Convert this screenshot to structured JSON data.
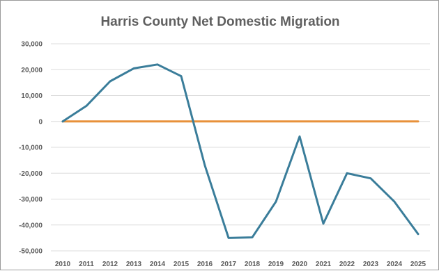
{
  "chart_data": {
    "type": "line",
    "title": "Harris County Net Domestic Migration",
    "xlabel": "",
    "ylabel": "",
    "categories": [
      "2010",
      "2011",
      "2012",
      "2013",
      "2014",
      "2015",
      "2016",
      "2017",
      "2018",
      "2019",
      "2020",
      "2021",
      "2022",
      "2023",
      "2024",
      "2025"
    ],
    "ylim": [
      -50000,
      30000
    ],
    "yticks": [
      30000,
      20000,
      10000,
      0,
      -10000,
      -20000,
      -30000,
      -40000,
      -50000
    ],
    "ytick_labels": [
      "30,000",
      "20,000",
      "10,000",
      "0",
      "-10,000",
      "-20,000",
      "-30,000",
      "-40,000",
      "-50,000"
    ],
    "grid": "horizontal",
    "legend": "none",
    "series": [
      {
        "color": "#3a7d9a",
        "values": [
          0,
          6000,
          15500,
          20500,
          22000,
          17500,
          -17000,
          -45000,
          -44800,
          -31000,
          -5800,
          -39500,
          -20000,
          -22000,
          -31000,
          -43500
        ]
      },
      {
        "color": "#e8913a",
        "values": [
          0,
          0,
          0,
          0,
          0,
          0,
          0,
          0,
          0,
          0,
          0,
          0,
          0,
          0,
          0,
          0
        ]
      }
    ]
  }
}
